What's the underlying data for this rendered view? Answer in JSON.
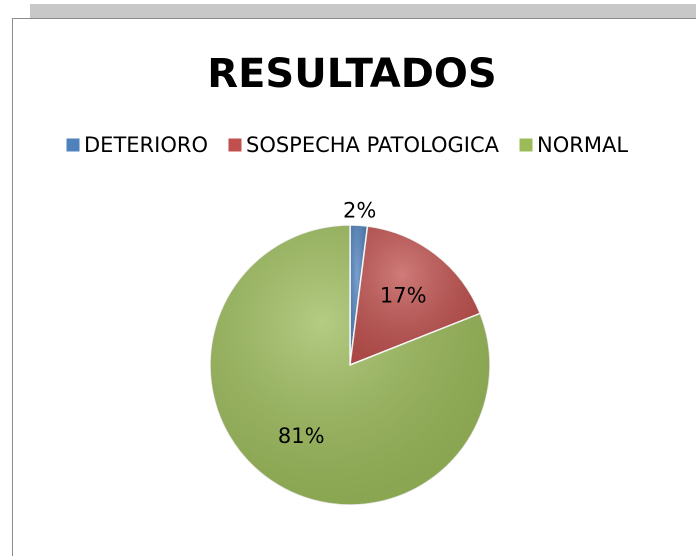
{
  "chart_data": {
    "type": "pie",
    "title": "RESULTADOS",
    "categories": [
      "DETERIORO",
      "SOSPECHA PATOLOGICA",
      "NORMAL"
    ],
    "values": [
      2,
      17,
      81
    ],
    "value_labels": [
      "2%",
      "17%",
      "81%"
    ],
    "colors": [
      "#4f81bd",
      "#c0504d",
      "#9bbb59"
    ],
    "legend": "top"
  }
}
